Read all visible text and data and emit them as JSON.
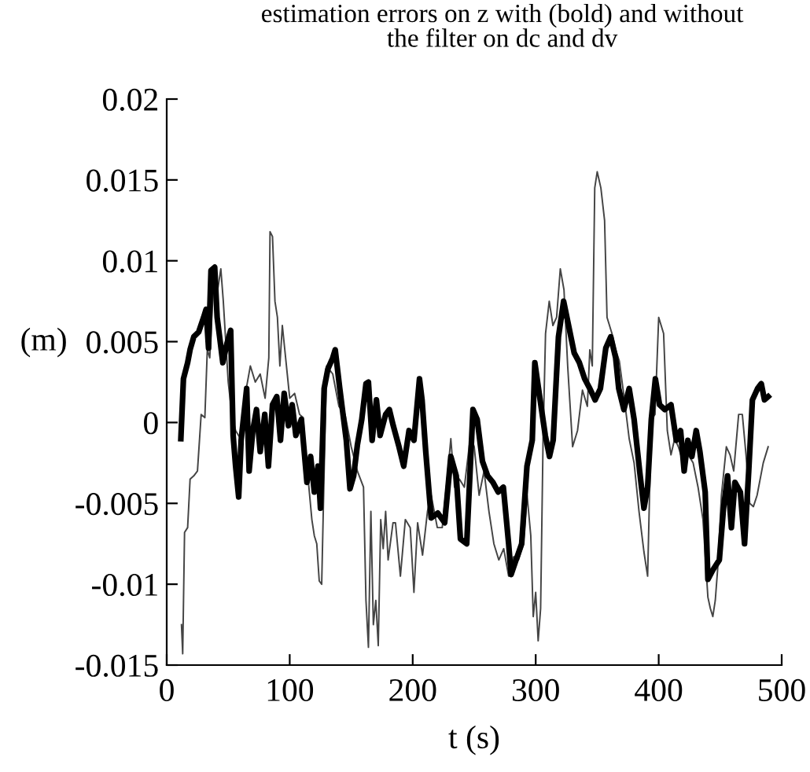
{
  "chart_data": {
    "type": "line",
    "title": "estimation errors on z with (bold) and without\nthe filter on dc and dv",
    "xlabel": "t (s)",
    "ylabel": "(m)",
    "xlim": [
      0,
      500
    ],
    "xticks": [
      0,
      100,
      200,
      300,
      400,
      500
    ],
    "ylim": [
      -0.015,
      0.02
    ],
    "yticks": [
      -0.015,
      -0.01,
      -0.005,
      0,
      0.005,
      0.01,
      0.015,
      0.02
    ],
    "grid": false,
    "legend": false,
    "line_style": "solid",
    "marker": "none",
    "series": [
      {
        "color": "#000000",
        "x": [
          11.5,
          13.6,
          17,
          19,
          22,
          26,
          30,
          32,
          34,
          36,
          39,
          41,
          43,
          45.6,
          49,
          52,
          54,
          56,
          58.5,
          60.5,
          65,
          67,
          70,
          73,
          76,
          79.7,
          82.7,
          86,
          89.5,
          92.5,
          95.5,
          99,
          102,
          105,
          109.5,
          114,
          117,
          120,
          123,
          125,
          128,
          131,
          135,
          137,
          140.7,
          146,
          149,
          152,
          155,
          158.6,
          162,
          164,
          167,
          170.5,
          173.5,
          178,
          181,
          184.2,
          188.5,
          192.7,
          197,
          201,
          205.5,
          207.6,
          210.6,
          215,
          220.4,
          226,
          231,
          235.4,
          238.8,
          243.9,
          249,
          252.4,
          256.7,
          260.9,
          265.2,
          269.5,
          273.7,
          278,
          280,
          284,
          288.6,
          292.9,
          297.2,
          299.3,
          303.6,
          307.8,
          311.2,
          314.2,
          318.5,
          322.7,
          327,
          331.3,
          335.5,
          339.8,
          344,
          348.3,
          352.6,
          357,
          361,
          365,
          367.5,
          371.7,
          376,
          380,
          384.5,
          388,
          391,
          394,
          397.3,
          400.7,
          405,
          410,
          414.3,
          417.8,
          420.7,
          423.7,
          427,
          430.5,
          433.5,
          437.8,
          440,
          444.2,
          449.3,
          452.7,
          456,
          459.1,
          462,
          466.4,
          469.8,
          473.2,
          476.2,
          480.4,
          483.4,
          486,
          489
        ],
        "values": [
          -0.001,
          0.0027,
          0.0037,
          0.0045,
          0.0053,
          0.0056,
          0.0065,
          0.007,
          0.0046,
          0.0094,
          0.0096,
          0.0065,
          0.0053,
          0.0037,
          0.0049,
          0.0057,
          -0.0008,
          -0.0027,
          -0.0046,
          -0.0011,
          0.0021,
          -0.003,
          -0.0005,
          0.0008,
          -0.0018,
          0.0005,
          -0.0027,
          0.0011,
          0.0016,
          -0.0011,
          0.0018,
          -0.0002,
          0.0011,
          -0.0008,
          0.0002,
          -0.0037,
          -0.0021,
          -0.0043,
          -0.0027,
          -0.0053,
          0.0021,
          0.0033,
          0.004,
          0.0045,
          0.0021,
          -0.0011,
          -0.0041,
          -0.0033,
          -0.0014,
          0.0002,
          0.0024,
          0.0025,
          -0.0011,
          0.0014,
          -0.0008,
          0.0005,
          0.0008,
          -0.0002,
          -0.0014,
          -0.0027,
          -0.0005,
          -0.0011,
          0.0027,
          0.0014,
          -0.0018,
          -0.0059,
          -0.0056,
          -0.0062,
          -0.0021,
          -0.0033,
          -0.0072,
          -0.0075,
          0.0008,
          0.0002,
          -0.0024,
          -0.0033,
          -0.0037,
          -0.0043,
          -0.004,
          -0.0075,
          -0.0094,
          -0.0085,
          -0.0075,
          -0.0027,
          -0.0011,
          0.0037,
          0.0014,
          -0.0008,
          -0.0021,
          -0.0011,
          0.0053,
          0.0075,
          0.0059,
          0.0043,
          0.0037,
          0.0027,
          0.0021,
          0.0014,
          0.0021,
          0.0046,
          0.0053,
          0.004,
          0.0021,
          0.0008,
          0.0021,
          0.0002,
          -0.003,
          -0.0053,
          -0.004,
          0.0002,
          0.0027,
          0.0011,
          0.0008,
          0.0011,
          -0.0011,
          -0.0005,
          -0.003,
          -0.0011,
          -0.0021,
          -0.0005,
          -0.0018,
          -0.0043,
          -0.0097,
          -0.0091,
          -0.0085,
          -0.0053,
          -0.0033,
          -0.0065,
          -0.0037,
          -0.0043,
          -0.0075,
          -0.003,
          0.0014,
          0.0021,
          0.0024,
          0.0014,
          0.0016
        ]
      },
      {
        "color": "#444444",
        "x": [
          12,
          13,
          14.5,
          17,
          19,
          22,
          25,
          28,
          31,
          33,
          35,
          38,
          40,
          42,
          44,
          46,
          48,
          50,
          53,
          56,
          60,
          64,
          68,
          72,
          76,
          80,
          83,
          84,
          86,
          88,
          90,
          92,
          94,
          96,
          98,
          100,
          104,
          108,
          111,
          113,
          115,
          118,
          120,
          122,
          124,
          126,
          128,
          130,
          135,
          140,
          145,
          150,
          155,
          160,
          162,
          164,
          166,
          168,
          170,
          172,
          174,
          176,
          178,
          180,
          184,
          186,
          190,
          194,
          198,
          201,
          204,
          208,
          212,
          215,
          220,
          224,
          228,
          231,
          234,
          238,
          242,
          247,
          250,
          254,
          258,
          262,
          266,
          270,
          274,
          278,
          282,
          286,
          290,
          293,
          296,
          298,
          300,
          302,
          304,
          306,
          308,
          311,
          314,
          317,
          320,
          323,
          326,
          330,
          334,
          338,
          342,
          344,
          346,
          348,
          350,
          353,
          356,
          358,
          362,
          365,
          368,
          372,
          376,
          380,
          384,
          388,
          391,
          394,
          397,
          400,
          404,
          407,
          410,
          413,
          416,
          420,
          424,
          428,
          432,
          436,
          440,
          442,
          444,
          446,
          448,
          451,
          455,
          458,
          461,
          465,
          468,
          471,
          474,
          477,
          480,
          485,
          489
        ],
        "values": [
          -0.0125,
          -0.0143,
          -0.0068,
          -0.0065,
          -0.0035,
          -0.0033,
          -0.003,
          0.0005,
          0.0003,
          0.0045,
          0.004,
          0.0085,
          0.0075,
          0.0085,
          0.0095,
          0.0075,
          0.005,
          0.0025,
          0.0005,
          -0.0005,
          -0.001,
          0.0018,
          0.0035,
          0.0025,
          0.003,
          0.0015,
          0.004,
          0.0118,
          0.0115,
          0.0075,
          0.0065,
          0.0035,
          0.006,
          0.0045,
          0.003,
          0.0015,
          0.0018,
          0.0005,
          0.0003,
          -0.0025,
          -0.0035,
          -0.006,
          -0.007,
          -0.0075,
          -0.0098,
          -0.01,
          -0.003,
          0.0035,
          0.003,
          0.001,
          0.0005,
          -0.0015,
          -0.003,
          -0.004,
          -0.011,
          -0.0139,
          -0.0055,
          -0.0125,
          -0.011,
          -0.0138,
          -0.006,
          -0.0078,
          -0.0055,
          -0.0085,
          -0.0062,
          -0.0062,
          -0.0095,
          -0.006,
          -0.0065,
          -0.0105,
          -0.0062,
          -0.0082,
          -0.0055,
          -0.0045,
          -0.0065,
          -0.0065,
          -0.0035,
          -0.001,
          -0.004,
          -0.0035,
          -0.004,
          -0.0008,
          -0.0015,
          -0.0045,
          -0.003,
          -0.0055,
          -0.0075,
          -0.0085,
          -0.0078,
          -0.0095,
          -0.0083,
          -0.0085,
          -0.0075,
          -0.0045,
          -0.007,
          -0.012,
          -0.0105,
          -0.0135,
          -0.0115,
          -0.001,
          0.0055,
          0.0075,
          0.006,
          0.0065,
          0.0095,
          0.0082,
          0.0035,
          -0.0015,
          -0.0005,
          0.002,
          0.001,
          0.0045,
          0.0035,
          0.0145,
          0.0155,
          0.0145,
          0.0125,
          0.0065,
          0.0055,
          0.0045,
          0.0038,
          0.0015,
          -0.001,
          -0.0025,
          -0.0055,
          -0.008,
          -0.0095,
          0.0002,
          0.0005,
          0.0065,
          0.0055,
          -0.0005,
          -0.002,
          -0.001,
          -0.0015,
          -0.0025,
          -0.002,
          -0.0025,
          -0.004,
          -0.006,
          -0.0108,
          -0.0115,
          -0.012,
          -0.011,
          -0.009,
          -0.0045,
          -0.0015,
          -0.002,
          -0.003,
          0.0005,
          0.0005,
          -0.002,
          -0.005,
          -0.0052,
          -0.0045,
          -0.0025,
          -0.0015
        ]
      }
    ]
  }
}
